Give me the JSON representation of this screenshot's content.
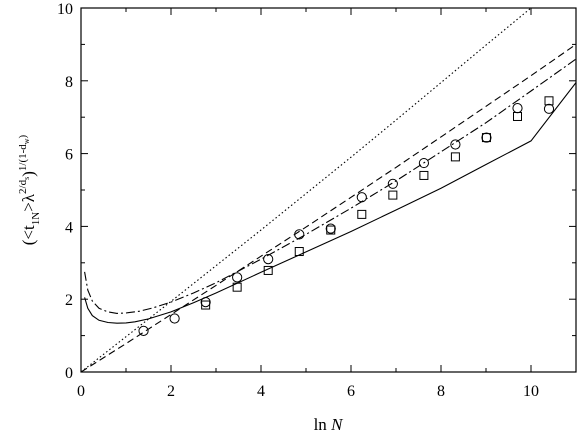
{
  "chart_data": {
    "type": "line",
    "xlabel": "ln N",
    "ylabel": "(<t1N>λ^{2/ds} )^{1/(1-dw)}",
    "xlim": [
      0,
      11
    ],
    "ylim": [
      0,
      10
    ],
    "x_ticks": [
      "0",
      "2",
      "4",
      "6",
      "8",
      "10"
    ],
    "y_ticks": [
      "0",
      "2",
      "4",
      "6",
      "8",
      "10"
    ],
    "grid": false,
    "legend": "none",
    "series": [
      {
        "style": "solid",
        "x": [
          0.08,
          0.15,
          0.25,
          0.4,
          0.6,
          0.8,
          1.0,
          1.2,
          1.5,
          2.0,
          2.5,
          3.0,
          4.0,
          5.0,
          6.0,
          7.0,
          8.0,
          9.0,
          10.0,
          11.0
        ],
        "y": [
          2.05,
          1.75,
          1.55,
          1.42,
          1.36,
          1.34,
          1.35,
          1.38,
          1.46,
          1.65,
          1.9,
          2.17,
          2.74,
          3.3,
          3.86,
          4.45,
          5.05,
          5.7,
          6.35,
          7.95
        ]
      },
      {
        "style": "dash",
        "x": [
          0.0,
          1.0,
          2.0,
          3.0,
          4.0,
          5.0,
          6.0,
          7.0,
          8.0,
          9.0,
          10.0,
          11.0
        ],
        "y": [
          0.0,
          0.78,
          1.58,
          2.38,
          3.18,
          3.98,
          4.8,
          5.62,
          6.46,
          7.3,
          8.14,
          9.0
        ]
      },
      {
        "style": "dashdot",
        "x": [
          0.08,
          0.15,
          0.25,
          0.4,
          0.6,
          0.8,
          1.0,
          1.3,
          1.6,
          2.0,
          2.5,
          3.0,
          4.0,
          5.0,
          6.0,
          7.0,
          8.0,
          9.0,
          10.0,
          11.0
        ],
        "y": [
          2.75,
          2.25,
          1.95,
          1.75,
          1.65,
          1.61,
          1.62,
          1.67,
          1.76,
          1.92,
          2.17,
          2.45,
          3.1,
          3.78,
          4.5,
          5.25,
          6.05,
          6.85,
          7.72,
          8.6
        ]
      },
      {
        "style": "dot",
        "x": [
          0.0,
          1.0,
          2.0,
          3.0,
          4.0,
          5.0,
          6.0,
          7.0,
          8.0,
          9.0,
          10.0,
          11.0
        ],
        "y": [
          0.0,
          0.97,
          1.94,
          2.92,
          3.9,
          4.9,
          5.9,
          6.92,
          7.95,
          8.98,
          10.0,
          11.0
        ]
      },
      {
        "marker": "circle",
        "x": [
          1.39,
          2.08,
          2.77,
          3.47,
          4.16,
          4.85,
          5.55,
          6.24,
          6.93,
          7.62,
          8.32,
          9.01,
          9.7,
          10.4
        ],
        "y": [
          1.13,
          1.47,
          1.92,
          2.6,
          3.1,
          3.78,
          3.94,
          4.8,
          5.17,
          5.74,
          6.25,
          6.44,
          7.25,
          7.23
        ]
      },
      {
        "marker": "square",
        "x": [
          2.77,
          3.47,
          4.16,
          4.85,
          5.55,
          6.24,
          6.93,
          7.62,
          8.32,
          9.01,
          9.7,
          10.4
        ],
        "y": [
          1.84,
          2.33,
          2.79,
          3.31,
          3.9,
          4.33,
          4.86,
          5.4,
          5.91,
          6.44,
          7.02,
          7.45
        ]
      }
    ]
  }
}
